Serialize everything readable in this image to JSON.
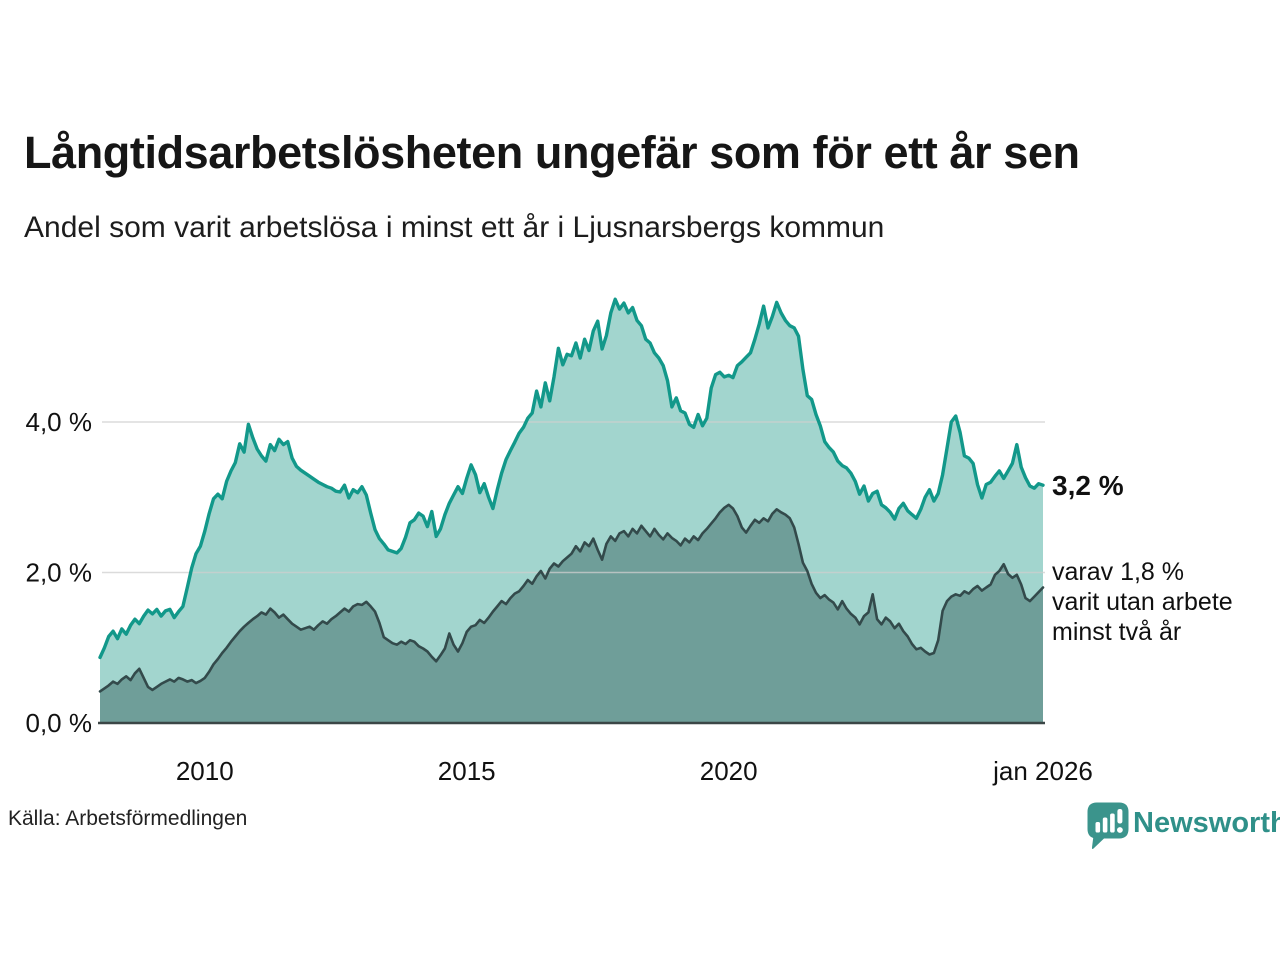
{
  "header": {
    "title": "Långtidsarbetslösheten ungefär som för ett år sen",
    "subtitle": "Andel som varit arbetslösa i minst ett år i Ljusnarsbergs kommun"
  },
  "annotations": {
    "latest_total": "3,2 %",
    "latest_sub": "varav 1,8 %\nvarit utan arbete\nminst två år"
  },
  "source": {
    "label": "Källa: Arbetsförmedlingen"
  },
  "logo": {
    "text": "Newsworthy",
    "icon": "newsworthy-speech-bubble-bar-chart-icon",
    "icon_color": "#3b948c",
    "text_color": "#2f9089"
  },
  "chart_data": {
    "type": "area",
    "title": "Långtidsarbetslösheten ungefär som för ett år sen",
    "subtitle": "Andel som varit arbetslösa i minst ett år i Ljusnarsbergs kommun",
    "x_start": "2008-01",
    "x_end": "2026-01",
    "x_interval": "monthly",
    "ylim": [
      0,
      5.9
    ],
    "grid": "horizontal",
    "grid_color": "#cfcfcf",
    "axis_line_color": "#3b4646",
    "tick_label_color": "#111111",
    "y_ticks": [
      {
        "label": "0,0 %",
        "value": 0
      },
      {
        "label": "2,0 %",
        "value": 2
      },
      {
        "label": "4,0 %",
        "value": 4
      }
    ],
    "x_ticks": [
      {
        "label": "2010",
        "month_index": 24
      },
      {
        "label": "2015",
        "month_index": 84
      },
      {
        "label": "2020",
        "month_index": 144
      },
      {
        "label": "jan 2026",
        "month_index": 216
      }
    ],
    "series": [
      {
        "name": "Andel som varit arbetslösa i minst ett år",
        "line_color": "#12988a",
        "fill_color": "#a2d5ce",
        "line_width": 3.4,
        "last_value_label": "3,2 %",
        "values": [
          0.87,
          1.0,
          1.15,
          1.22,
          1.12,
          1.25,
          1.18,
          1.3,
          1.38,
          1.32,
          1.42,
          1.5,
          1.45,
          1.51,
          1.42,
          1.49,
          1.51,
          1.4,
          1.48,
          1.55,
          1.8,
          2.06,
          2.25,
          2.35,
          2.55,
          2.78,
          2.98,
          3.04,
          2.98,
          3.21,
          3.35,
          3.46,
          3.71,
          3.6,
          3.97,
          3.79,
          3.64,
          3.55,
          3.48,
          3.7,
          3.62,
          3.77,
          3.7,
          3.74,
          3.52,
          3.41,
          3.36,
          3.32,
          3.28,
          3.24,
          3.2,
          3.17,
          3.14,
          3.12,
          3.08,
          3.07,
          3.16,
          2.99,
          3.1,
          3.06,
          3.14,
          3.03,
          2.79,
          2.57,
          2.45,
          2.38,
          2.3,
          2.28,
          2.26,
          2.32,
          2.47,
          2.66,
          2.7,
          2.79,
          2.75,
          2.61,
          2.81,
          2.48,
          2.58,
          2.77,
          2.92,
          3.03,
          3.14,
          3.05,
          3.25,
          3.43,
          3.3,
          3.06,
          3.18,
          3.0,
          2.85,
          3.1,
          3.32,
          3.5,
          3.62,
          3.73,
          3.85,
          3.93,
          4.05,
          4.12,
          4.41,
          4.2,
          4.52,
          4.28,
          4.6,
          4.98,
          4.76,
          4.9,
          4.88,
          5.05,
          4.85,
          5.1,
          4.95,
          5.21,
          5.34,
          4.97,
          5.15,
          5.45,
          5.63,
          5.5,
          5.58,
          5.45,
          5.52,
          5.35,
          5.28,
          5.1,
          5.05,
          4.92,
          4.85,
          4.75,
          4.55,
          4.2,
          4.32,
          4.15,
          4.12,
          3.97,
          3.93,
          4.1,
          3.95,
          4.05,
          4.45,
          4.63,
          4.66,
          4.6,
          4.62,
          4.59,
          4.75,
          4.8,
          4.86,
          4.92,
          5.1,
          5.3,
          5.54,
          5.25,
          5.4,
          5.59,
          5.45,
          5.35,
          5.28,
          5.25,
          5.14,
          4.7,
          4.35,
          4.3,
          4.1,
          3.95,
          3.74,
          3.66,
          3.6,
          3.48,
          3.42,
          3.39,
          3.32,
          3.21,
          3.04,
          3.15,
          2.95,
          3.05,
          3.08,
          2.9,
          2.86,
          2.8,
          2.71,
          2.85,
          2.92,
          2.82,
          2.77,
          2.72,
          2.84,
          3.0,
          3.1,
          2.95,
          3.05,
          3.3,
          3.65,
          4.0,
          4.08,
          3.86,
          3.55,
          3.52,
          3.45,
          3.17,
          2.99,
          3.17,
          3.2,
          3.28,
          3.35,
          3.25,
          3.35,
          3.45,
          3.7,
          3.4,
          3.26,
          3.15,
          3.12,
          3.18,
          3.16
        ]
      },
      {
        "name": "varav utan arbete minst två år",
        "line_color": "#334a4b",
        "fill_color": "#6f9e99",
        "line_width": 2.6,
        "last_value_label": "1,8 %",
        "values": [
          0.42,
          0.46,
          0.5,
          0.55,
          0.52,
          0.58,
          0.62,
          0.57,
          0.66,
          0.72,
          0.6,
          0.48,
          0.44,
          0.48,
          0.52,
          0.55,
          0.58,
          0.55,
          0.6,
          0.58,
          0.55,
          0.57,
          0.53,
          0.56,
          0.6,
          0.68,
          0.78,
          0.85,
          0.93,
          1.0,
          1.08,
          1.15,
          1.22,
          1.28,
          1.33,
          1.38,
          1.42,
          1.47,
          1.44,
          1.52,
          1.47,
          1.4,
          1.44,
          1.38,
          1.32,
          1.28,
          1.24,
          1.26,
          1.28,
          1.24,
          1.3,
          1.35,
          1.32,
          1.38,
          1.42,
          1.47,
          1.52,
          1.48,
          1.55,
          1.58,
          1.57,
          1.61,
          1.55,
          1.48,
          1.33,
          1.14,
          1.1,
          1.06,
          1.04,
          1.08,
          1.05,
          1.1,
          1.08,
          1.02,
          0.99,
          0.95,
          0.88,
          0.82,
          0.9,
          0.99,
          1.19,
          1.04,
          0.95,
          1.06,
          1.21,
          1.28,
          1.3,
          1.37,
          1.33,
          1.4,
          1.48,
          1.55,
          1.62,
          1.58,
          1.66,
          1.72,
          1.75,
          1.82,
          1.9,
          1.85,
          1.95,
          2.02,
          1.92,
          2.05,
          2.12,
          2.08,
          2.15,
          2.2,
          2.25,
          2.35,
          2.28,
          2.4,
          2.35,
          2.45,
          2.3,
          2.17,
          2.38,
          2.48,
          2.42,
          2.52,
          2.55,
          2.48,
          2.58,
          2.52,
          2.62,
          2.55,
          2.48,
          2.58,
          2.5,
          2.44,
          2.52,
          2.46,
          2.42,
          2.36,
          2.45,
          2.4,
          2.48,
          2.43,
          2.52,
          2.58,
          2.65,
          2.72,
          2.8,
          2.86,
          2.9,
          2.85,
          2.75,
          2.6,
          2.53,
          2.62,
          2.7,
          2.66,
          2.72,
          2.68,
          2.78,
          2.84,
          2.8,
          2.77,
          2.72,
          2.6,
          2.38,
          2.13,
          2.02,
          1.85,
          1.73,
          1.66,
          1.7,
          1.64,
          1.6,
          1.51,
          1.62,
          1.52,
          1.45,
          1.4,
          1.31,
          1.42,
          1.47,
          1.71,
          1.38,
          1.31,
          1.4,
          1.35,
          1.26,
          1.32,
          1.22,
          1.15,
          1.05,
          0.98,
          1.0,
          0.95,
          0.91,
          0.93,
          1.1,
          1.49,
          1.62,
          1.68,
          1.71,
          1.69,
          1.75,
          1.72,
          1.78,
          1.82,
          1.76,
          1.8,
          1.84,
          1.97,
          2.02,
          2.11,
          1.98,
          1.93,
          1.97,
          1.84,
          1.66,
          1.62,
          1.68,
          1.74,
          1.8
        ]
      }
    ]
  }
}
